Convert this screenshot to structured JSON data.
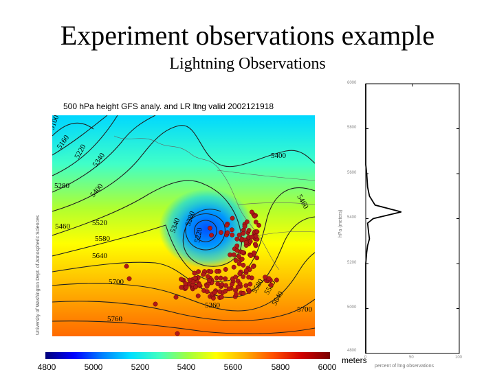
{
  "slide": {
    "title": "Experiment observations example",
    "subtitle": "Lightning Observations"
  },
  "map": {
    "heading": "500 hPa height GFS analy. and LR ltng valid 2002121918",
    "credit": "University of Washington Dept. of Atmospheric Sciences",
    "contour_labels": [
      "5100",
      "5160",
      "5220",
      "5280",
      "5340",
      "5400",
      "5460",
      "5520",
      "5580",
      "5640",
      "5700",
      "5760",
      "5340",
      "5280",
      "5220",
      "5400",
      "5460",
      "5580",
      "5640",
      "5700",
      "5360",
      "5580"
    ],
    "colorbar": {
      "ticks": [
        "4800",
        "5000",
        "5200",
        "5400",
        "5600",
        "5800",
        "6000"
      ],
      "unit": "meters",
      "colors": [
        "#00007a",
        "#0000ff",
        "#0080ff",
        "#00e0ff",
        "#40ffc0",
        "#a0ff40",
        "#ffff00",
        "#ffb000",
        "#ff5000",
        "#d00000",
        "#7a0000"
      ]
    },
    "lightning_color": "#b01818"
  },
  "profile": {
    "y_ticks": [
      "6000",
      "5800",
      "5600",
      "5400",
      "5200",
      "5000",
      "4800"
    ],
    "x_ticks": [
      "0",
      "50",
      "100"
    ],
    "ylabel": "hPa (meters)",
    "xlabel": "percent of ltng observations"
  },
  "chart_data": {
    "type": "line",
    "title": "",
    "xlabel": "percent of ltng observations",
    "ylabel": "hPa (meters)",
    "xlim": [
      0,
      100
    ],
    "ylim": [
      4800,
      6000
    ],
    "series": [
      {
        "x": [
          0,
          0,
          1,
          2,
          4,
          3,
          2,
          8,
          38,
          10,
          4,
          2,
          1,
          0,
          0
        ],
        "y": [
          4800,
          5200,
          5250,
          5280,
          5310,
          5340,
          5380,
          5400,
          5430,
          5460,
          5500,
          5540,
          5600,
          5640,
          6000
        ]
      }
    ]
  }
}
